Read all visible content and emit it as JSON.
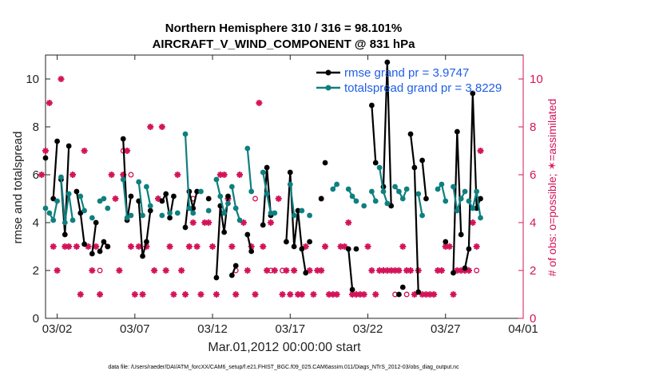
{
  "chart_data": {
    "type": "line",
    "title_line1": "Northern Hemisphere 310 / 316 = 98.101%",
    "title_line2": "AIRCRAFT_V_WIND_COMPONENT @ 831 hPa",
    "xlabel": "Mar.01,2012 00:00:00 start",
    "ylabel": "rmse and totalspread",
    "ylabel_right": "# of obs: o=possible; ✶=assimilated",
    "xlim": [
      0.25,
      31.0
    ],
    "ylim": [
      0,
      11
    ],
    "ylim_right": [
      0,
      11
    ],
    "xticks": [
      {
        "x": 1,
        "label": "03/02"
      },
      {
        "x": 6,
        "label": "03/07"
      },
      {
        "x": 11,
        "label": "03/12"
      },
      {
        "x": 16,
        "label": "03/17"
      },
      {
        "x": 21,
        "label": "03/22"
      },
      {
        "x": 26,
        "label": "03/27"
      },
      {
        "x": 31,
        "label": "04/01"
      }
    ],
    "yticks": [
      "0",
      "2",
      "4",
      "6",
      "8",
      "10"
    ],
    "yticks_right": [
      "0",
      "2",
      "4",
      "6",
      "8",
      "10"
    ],
    "series": [
      {
        "name": "rmse",
        "legend": "rmse grand pr = 3.9747",
        "color": "#000000",
        "segments": [
          [
            [
              0.25,
              6.7
            ]
          ],
          [
            [
              0.75,
              5.0
            ],
            [
              1.0,
              7.4
            ]
          ],
          [
            [
              1.25,
              5.8
            ],
            [
              1.5,
              3.5
            ],
            [
              1.75,
              7.2
            ]
          ],
          [
            [
              2.25,
              5.3
            ],
            [
              2.5,
              4.4
            ],
            [
              2.75,
              3.1
            ]
          ],
          [
            [
              3.25,
              2.7
            ],
            [
              3.5,
              4.0
            ]
          ],
          [
            [
              3.75,
              2.8
            ],
            [
              4.0,
              3.2
            ],
            [
              4.25,
              3.0
            ]
          ],
          [
            [
              5.25,
              7.5
            ],
            [
              5.5,
              4.1
            ],
            [
              5.75,
              5.1
            ]
          ],
          [
            [
              6.25,
              4.9
            ],
            [
              6.5,
              2.6
            ],
            [
              6.75,
              3.2
            ],
            [
              7.0,
              4.5
            ]
          ],
          [
            [
              7.75,
              4.9
            ],
            [
              8.0,
              5.2
            ],
            [
              8.25,
              4.2
            ],
            [
              8.5,
              5.1
            ]
          ],
          [
            [
              9.25,
              3.8
            ],
            [
              9.5,
              5.3
            ],
            [
              9.75,
              4.6
            ],
            [
              10.0,
              5.3
            ]
          ],
          [
            [
              10.75,
              5.0
            ]
          ],
          [
            [
              11.25,
              1.7
            ],
            [
              11.5,
              4.7
            ],
            [
              11.75,
              3.6
            ],
            [
              12.0,
              5.1
            ]
          ],
          [
            [
              12.25,
              1.8
            ],
            [
              12.5,
              2.2
            ]
          ],
          [
            [
              13.25,
              3.5
            ],
            [
              13.5,
              2.8
            ]
          ],
          [
            [
              14.25,
              3.9
            ],
            [
              14.5,
              6.3
            ],
            [
              14.75,
              4.3
            ]
          ],
          [
            [
              15.75,
              3.2
            ],
            [
              16.0,
              6.1
            ],
            [
              16.25,
              3.0
            ],
            [
              16.5,
              4.5
            ],
            [
              16.75,
              2.9
            ],
            [
              17.0,
              1.9
            ]
          ],
          [
            [
              17.25,
              3.2
            ]
          ],
          [
            [
              18.0,
              5.0
            ]
          ],
          [
            [
              18.25,
              6.5
            ]
          ],
          [
            [
              19.75,
              2.9
            ],
            [
              20.0,
              1.2
            ]
          ],
          [
            [
              20.25,
              2.9
            ]
          ],
          [
            [
              21.25,
              8.9
            ],
            [
              21.5,
              6.5
            ]
          ],
          [
            [
              22.0,
              5.5
            ],
            [
              22.25,
              10.7
            ],
            [
              22.5,
              4.7
            ]
          ],
          [
            [
              23.0,
              1.0
            ]
          ],
          [
            [
              23.25,
              1.3
            ]
          ],
          [
            [
              23.75,
              7.7
            ],
            [
              24.0,
              6.3
            ],
            [
              24.25,
              1.1
            ]
          ],
          [
            [
              24.5,
              6.6
            ],
            [
              24.75,
              5.0
            ]
          ],
          [
            [
              26.0,
              3.2
            ]
          ],
          [
            [
              26.5,
              1.9
            ],
            [
              26.75,
              7.8
            ],
            [
              27.0,
              3.5
            ]
          ],
          [
            [
              27.25,
              2.1
            ],
            [
              27.5,
              2.9
            ],
            [
              27.75,
              9.4
            ],
            [
              28.0,
              4.6
            ],
            [
              28.25,
              5.0
            ]
          ]
        ]
      },
      {
        "name": "totalspread",
        "legend": "totalspread grand pr = 3.8229",
        "color": "#0f7f7f",
        "segments": [
          [
            [
              0.25,
              4.6
            ]
          ],
          [
            [
              0.5,
              4.4
            ],
            [
              0.75,
              4.1
            ],
            [
              1.0,
              4.9
            ]
          ],
          [
            [
              1.25,
              5.9
            ],
            [
              1.5,
              4.0
            ],
            [
              1.75,
              5.2
            ],
            [
              2.0,
              4.1
            ]
          ],
          [
            [
              2.5,
              5.1
            ],
            [
              2.75,
              4.5
            ]
          ],
          [
            [
              3.25,
              4.2
            ]
          ],
          [
            [
              3.75,
              4.9
            ],
            [
              4.0,
              5.0
            ]
          ],
          [
            [
              4.25,
              4.6
            ]
          ],
          [
            [
              5.25,
              5.8
            ],
            [
              5.5,
              4.2
            ],
            [
              5.75,
              4.3
            ]
          ],
          [
            [
              6.25,
              5.7
            ],
            [
              6.5,
              4.3
            ]
          ],
          [
            [
              6.75,
              5.5
            ],
            [
              7.0,
              4.7
            ]
          ],
          [
            [
              7.75,
              4.3
            ]
          ],
          [
            [
              8.25,
              4.4
            ]
          ],
          [
            [
              8.75,
              4.4
            ]
          ],
          [
            [
              9.25,
              7.7
            ],
            [
              9.5,
              4.6
            ],
            [
              9.75,
              4.4
            ]
          ],
          [
            [
              10.25,
              5.3
            ]
          ],
          [
            [
              10.75,
              4.5
            ]
          ],
          [
            [
              11.25,
              5.8
            ],
            [
              11.5,
              5.1
            ],
            [
              11.75,
              4.4
            ],
            [
              12.0,
              4.8
            ]
          ],
          [
            [
              12.25,
              5.5
            ],
            [
              12.5,
              4.6
            ],
            [
              12.75,
              4.1
            ]
          ],
          [
            [
              13.25,
              7.1
            ],
            [
              13.5,
              5.3
            ]
          ],
          [
            [
              14.25,
              6.1
            ],
            [
              14.5,
              5.2
            ],
            [
              14.75,
              4.4
            ],
            [
              15.0,
              4.4
            ]
          ],
          [
            [
              16.0,
              5.6
            ],
            [
              16.25,
              4.3
            ]
          ],
          [
            [
              16.75,
              4.5
            ]
          ],
          [
            [
              17.25,
              4.3
            ]
          ],
          [
            [
              18.75,
              5.4
            ],
            [
              19.0,
              5.6
            ]
          ],
          [
            [
              19.75,
              5.4
            ],
            [
              20.0,
              5.1
            ],
            [
              20.25,
              4.9
            ]
          ],
          [
            [
              20.75,
              4.7
            ]
          ],
          [
            [
              21.25,
              5.3
            ],
            [
              21.5,
              4.9
            ]
          ],
          [
            [
              21.75,
              6.3
            ],
            [
              22.0,
              5.3
            ],
            [
              22.25,
              4.8
            ]
          ],
          [
            [
              22.75,
              5.5
            ],
            [
              23.0,
              5.3
            ],
            [
              23.25,
              5.0
            ],
            [
              23.5,
              5.4
            ]
          ],
          [
            [
              24.25,
              5.2
            ],
            [
              24.5,
              4.3
            ]
          ],
          [
            [
              25.5,
              5.4
            ],
            [
              25.75,
              5.6
            ],
            [
              26.0,
              4.9
            ]
          ],
          [
            [
              26.5,
              5.5
            ],
            [
              26.75,
              4.5
            ],
            [
              27.0,
              5.0
            ],
            [
              27.25,
              5.3
            ]
          ],
          [
            [
              27.5,
              4.9
            ],
            [
              27.75,
              4.6
            ],
            [
              28.0,
              5.3
            ],
            [
              28.25,
              4.2
            ]
          ]
        ]
      }
    ],
    "obs_assimilated": [
      [
        0.0,
        6.0
      ],
      [
        0.25,
        7.0
      ],
      [
        0.5,
        9.0
      ],
      [
        0.75,
        3.0
      ],
      [
        1.0,
        2.0
      ],
      [
        1.25,
        10.0
      ],
      [
        1.5,
        3.0
      ],
      [
        1.75,
        3.0
      ],
      [
        2.0,
        6.0
      ],
      [
        2.25,
        3.0
      ],
      [
        2.5,
        1.0
      ],
      [
        2.75,
        7.0
      ],
      [
        3.0,
        3.0
      ],
      [
        3.25,
        2.0
      ],
      [
        3.5,
        3.0
      ],
      [
        3.75,
        1.0
      ],
      [
        4.5,
        6.0
      ],
      [
        4.75,
        5.0
      ],
      [
        5.0,
        2.0
      ],
      [
        5.25,
        6.0
      ],
      [
        5.5,
        7.0
      ],
      [
        5.75,
        3.0
      ],
      [
        6.0,
        1.0
      ],
      [
        6.25,
        3.0
      ],
      [
        6.5,
        1.0
      ],
      [
        6.75,
        3.0
      ],
      [
        7.0,
        8.0
      ],
      [
        7.25,
        2.0
      ],
      [
        7.5,
        5.0
      ],
      [
        7.75,
        8.0
      ],
      [
        8.0,
        2.0
      ],
      [
        8.25,
        3.0
      ],
      [
        8.5,
        1.0
      ],
      [
        8.75,
        6.0
      ],
      [
        9.0,
        2.0
      ],
      [
        9.25,
        1.0
      ],
      [
        9.5,
        3.0
      ],
      [
        9.75,
        4.0
      ],
      [
        10.0,
        3.0
      ],
      [
        10.25,
        1.0
      ],
      [
        10.5,
        4.0
      ],
      [
        10.75,
        4.0
      ],
      [
        11.0,
        3.0
      ],
      [
        11.25,
        1.0
      ],
      [
        11.5,
        6.0
      ],
      [
        11.75,
        6.0
      ],
      [
        12.0,
        5.0
      ],
      [
        12.25,
        3.0
      ],
      [
        12.5,
        1.0
      ],
      [
        12.75,
        6.0
      ],
      [
        13.0,
        4.0
      ],
      [
        13.25,
        2.0
      ],
      [
        13.5,
        3.0
      ],
      [
        13.75,
        1.0
      ],
      [
        14.0,
        9.0
      ],
      [
        14.25,
        3.0
      ],
      [
        14.5,
        2.0
      ],
      [
        14.75,
        4.0
      ],
      [
        15.0,
        2.0
      ],
      [
        15.25,
        5.0
      ],
      [
        15.5,
        1.0
      ],
      [
        15.75,
        2.0
      ],
      [
        16.0,
        1.0
      ],
      [
        16.25,
        2.0
      ],
      [
        16.5,
        1.0
      ],
      [
        16.75,
        1.0
      ],
      [
        17.0,
        3.0
      ],
      [
        17.25,
        2.0
      ],
      [
        17.5,
        1.0
      ],
      [
        17.75,
        2.0
      ],
      [
        18.0,
        2.0
      ],
      [
        18.25,
        3.0
      ],
      [
        18.5,
        1.0
      ],
      [
        18.75,
        1.0
      ],
      [
        19.0,
        1.0
      ],
      [
        19.25,
        3.0
      ],
      [
        19.5,
        3.0
      ],
      [
        19.75,
        4.0
      ],
      [
        20.0,
        1.0
      ],
      [
        20.25,
        1.0
      ],
      [
        20.5,
        1.0
      ],
      [
        20.75,
        1.0
      ],
      [
        21.0,
        3.0
      ],
      [
        21.25,
        2.0
      ],
      [
        21.5,
        1.0
      ],
      [
        21.75,
        2.0
      ],
      [
        22.0,
        2.0
      ],
      [
        22.25,
        2.0
      ],
      [
        22.5,
        2.0
      ],
      [
        22.75,
        2.0
      ],
      [
        23.0,
        2.0
      ],
      [
        23.25,
        3.0
      ],
      [
        23.5,
        2.0
      ],
      [
        23.75,
        2.0
      ],
      [
        24.0,
        1.0
      ],
      [
        24.25,
        2.0
      ],
      [
        24.5,
        1.0
      ],
      [
        24.75,
        1.0
      ],
      [
        25.0,
        1.0
      ],
      [
        25.25,
        1.0
      ],
      [
        25.5,
        2.0
      ],
      [
        25.75,
        2.0
      ],
      [
        26.0,
        3.0
      ],
      [
        26.25,
        3.0
      ],
      [
        26.5,
        1.0
      ],
      [
        26.75,
        2.0
      ],
      [
        27.0,
        2.0
      ],
      [
        27.25,
        2.0
      ],
      [
        27.5,
        2.0
      ],
      [
        27.75,
        4.0
      ],
      [
        28.0,
        3.0
      ],
      [
        28.25,
        7.0
      ]
    ],
    "obs_possible": [
      [
        5.25,
        7.0
      ],
      [
        5.75,
        6.0
      ],
      [
        4.25,
        3.0
      ],
      [
        3.75,
        2.0
      ],
      [
        9.75,
        5.0
      ],
      [
        12.5,
        2.0
      ],
      [
        13.75,
        5.0
      ],
      [
        14.75,
        2.0
      ],
      [
        15.5,
        2.0
      ],
      [
        18.0,
        5.0
      ],
      [
        22.75,
        1.0
      ],
      [
        23.5,
        1.0
      ],
      [
        28.0,
        2.0
      ]
    ]
  }
}
